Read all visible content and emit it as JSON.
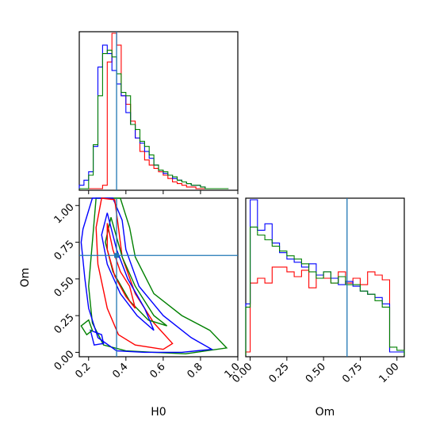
{
  "colors": {
    "red": "#ff0000",
    "blue": "#0000ff",
    "green": "#008000",
    "truth": "#1f77b4"
  },
  "chart_data": {
    "type": "corner",
    "truth": {
      "H0": 0.35,
      "Om": 0.66
    },
    "axes": {
      "H0": {
        "label": "H0",
        "range": [
          0.15,
          1.0
        ],
        "ticks": [
          0.2,
          0.4,
          0.6,
          0.8,
          1.0
        ],
        "tick_labels": [
          "0.2",
          "0.4",
          "0.6",
          "0.8",
          "1.0"
        ]
      },
      "Om": {
        "label": "Om",
        "range": [
          -0.03,
          1.05
        ],
        "ticks": [
          0.0,
          0.25,
          0.5,
          0.75,
          1.0
        ],
        "tick_labels": [
          "0.00",
          "0.25",
          "0.50",
          "0.75",
          "1.00"
        ]
      }
    },
    "hist_H0": {
      "bin_edges": [
        0.15,
        0.175,
        0.2,
        0.225,
        0.25,
        0.275,
        0.3,
        0.325,
        0.35,
        0.375,
        0.4,
        0.425,
        0.45,
        0.475,
        0.5,
        0.525,
        0.55,
        0.575,
        0.6,
        0.625,
        0.65,
        0.675,
        0.7,
        0.725,
        0.75,
        0.775,
        0.8,
        0.825,
        0.85,
        0.875,
        0.9,
        0.925,
        0.95
      ],
      "series": [
        {
          "color": "red",
          "values": [
            0,
            0,
            0,
            0,
            0,
            0.02,
            0.75,
            0.92,
            0.85,
            0.55,
            0.5,
            0.4,
            0.3,
            0.22,
            0.17,
            0.14,
            0.12,
            0.1,
            0.08,
            0.06,
            0.04,
            0.03,
            0.02,
            0.01,
            0.01,
            0,
            0,
            0,
            0,
            0,
            0,
            0
          ]
        },
        {
          "color": "blue",
          "values": [
            0.02,
            0.05,
            0.1,
            0.25,
            0.72,
            0.85,
            0.8,
            0.7,
            0.62,
            0.55,
            0.45,
            0.38,
            0.3,
            0.27,
            0.22,
            0.18,
            0.14,
            0.11,
            0.09,
            0.08,
            0.06,
            0.05,
            0.04,
            0.03,
            0.02,
            0.02,
            0.01,
            0,
            0,
            0,
            0,
            0
          ]
        },
        {
          "color": "green",
          "values": [
            0,
            0,
            0.08,
            0.26,
            0.55,
            0.8,
            0.82,
            0.78,
            0.68,
            0.57,
            0.55,
            0.38,
            0.35,
            0.28,
            0.25,
            0.2,
            0.14,
            0.11,
            0.1,
            0.08,
            0.07,
            0.05,
            0.04,
            0.03,
            0.02,
            0.02,
            0.01,
            0,
            0,
            0,
            0,
            0
          ]
        }
      ]
    },
    "hist_Om": {
      "bin_edges": [
        -0.03,
        0.0,
        0.05,
        0.1,
        0.15,
        0.2,
        0.25,
        0.3,
        0.35,
        0.4,
        0.45,
        0.5,
        0.55,
        0.6,
        0.65,
        0.7,
        0.75,
        0.8,
        0.85,
        0.9,
        0.95,
        1.0,
        1.05
      ],
      "series": [
        {
          "color": "red",
          "values": [
            0.02,
            0.45,
            0.48,
            0.45,
            0.55,
            0.55,
            0.52,
            0.49,
            0.53,
            0.42,
            0.5,
            0.48,
            0.45,
            0.52,
            0.45,
            0.48,
            0.44,
            0.52,
            0.5,
            0.47,
            0.02,
            0.02
          ]
        },
        {
          "color": "blue",
          "values": [
            0.32,
            0.97,
            0.78,
            0.82,
            0.7,
            0.64,
            0.6,
            0.58,
            0.55,
            0.57,
            0.5,
            0.52,
            0.48,
            0.44,
            0.46,
            0.43,
            0.4,
            0.38,
            0.36,
            0.32,
            0.02,
            0.02
          ]
        },
        {
          "color": "green",
          "values": [
            0.3,
            0.8,
            0.75,
            0.72,
            0.68,
            0.65,
            0.62,
            0.6,
            0.57,
            0.52,
            0.48,
            0.52,
            0.45,
            0.49,
            0.44,
            0.44,
            0.4,
            0.38,
            0.34,
            0.3,
            0.05,
            0.03
          ]
        }
      ]
    },
    "contours": [
      {
        "color": "green",
        "points": [
          [
            0.24,
            1.08
          ],
          [
            0.37,
            1.06
          ],
          [
            0.42,
            0.85
          ],
          [
            0.45,
            0.65
          ],
          [
            0.55,
            0.4
          ],
          [
            0.7,
            0.25
          ],
          [
            0.85,
            0.15
          ],
          [
            0.94,
            0.03
          ],
          [
            0.72,
            -0.01
          ],
          [
            0.55,
            0.0
          ],
          [
            0.4,
            0.01
          ],
          [
            0.28,
            0.05
          ],
          [
            0.22,
            0.2
          ],
          [
            0.2,
            0.45
          ],
          [
            0.22,
            0.75
          ],
          [
            0.24,
            1.08
          ]
        ]
      },
      {
        "color": "blue",
        "points": [
          [
            0.22,
            1.08
          ],
          [
            0.33,
            1.06
          ],
          [
            0.38,
            0.9
          ],
          [
            0.4,
            0.7
          ],
          [
            0.47,
            0.45
          ],
          [
            0.6,
            0.25
          ],
          [
            0.75,
            0.1
          ],
          [
            0.86,
            0.02
          ],
          [
            0.7,
            0.0
          ],
          [
            0.5,
            0.0
          ],
          [
            0.35,
            0.01
          ],
          [
            0.25,
            0.1
          ],
          [
            0.2,
            0.3
          ],
          [
            0.18,
            0.5
          ],
          [
            0.16,
            0.75
          ],
          [
            0.17,
            0.84
          ],
          [
            0.22,
            1.08
          ]
        ]
      },
      {
        "color": "red",
        "points": [
          [
            0.27,
            1.08
          ],
          [
            0.34,
            1.04
          ],
          [
            0.36,
            0.85
          ],
          [
            0.38,
            0.65
          ],
          [
            0.45,
            0.4
          ],
          [
            0.55,
            0.2
          ],
          [
            0.65,
            0.06
          ],
          [
            0.6,
            0.02
          ],
          [
            0.45,
            0.05
          ],
          [
            0.36,
            0.12
          ],
          [
            0.3,
            0.3
          ],
          [
            0.25,
            0.6
          ],
          [
            0.24,
            0.85
          ],
          [
            0.27,
            1.08
          ]
        ]
      },
      {
        "color": "green",
        "points": [
          [
            0.32,
            0.92
          ],
          [
            0.38,
            0.65
          ],
          [
            0.45,
            0.45
          ],
          [
            0.55,
            0.25
          ],
          [
            0.62,
            0.18
          ],
          [
            0.52,
            0.22
          ],
          [
            0.42,
            0.35
          ],
          [
            0.33,
            0.55
          ],
          [
            0.29,
            0.75
          ],
          [
            0.32,
            0.92
          ]
        ]
      },
      {
        "color": "blue",
        "points": [
          [
            0.3,
            0.95
          ],
          [
            0.35,
            0.7
          ],
          [
            0.41,
            0.5
          ],
          [
            0.5,
            0.3
          ],
          [
            0.55,
            0.15
          ],
          [
            0.46,
            0.25
          ],
          [
            0.37,
            0.4
          ],
          [
            0.3,
            0.6
          ],
          [
            0.27,
            0.8
          ],
          [
            0.3,
            0.95
          ]
        ]
      },
      {
        "color": "red",
        "points": [
          [
            0.3,
            0.88
          ],
          [
            0.33,
            0.7
          ],
          [
            0.37,
            0.55
          ],
          [
            0.42,
            0.45
          ],
          [
            0.45,
            0.3
          ],
          [
            0.4,
            0.38
          ],
          [
            0.34,
            0.52
          ],
          [
            0.3,
            0.7
          ],
          [
            0.3,
            0.88
          ]
        ]
      },
      {
        "color": "blue",
        "points": [
          [
            0.21,
            0.15
          ],
          [
            0.27,
            0.12
          ],
          [
            0.28,
            0.06
          ],
          [
            0.23,
            0.05
          ],
          [
            0.21,
            0.15
          ]
        ]
      },
      {
        "color": "green",
        "points": [
          [
            0.16,
            0.18
          ],
          [
            0.2,
            0.22
          ],
          [
            0.22,
            0.15
          ],
          [
            0.19,
            0.12
          ],
          [
            0.16,
            0.18
          ]
        ]
      }
    ]
  }
}
